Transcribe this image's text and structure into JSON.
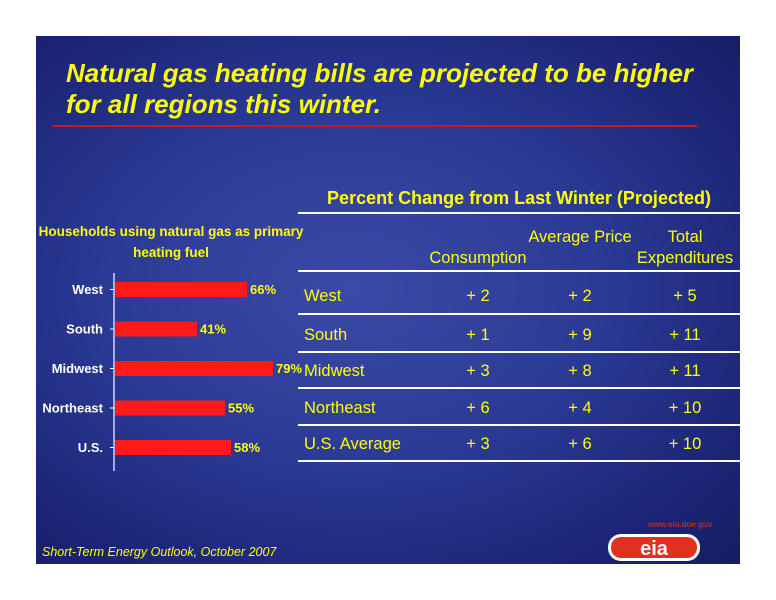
{
  "title": "Natural gas heating bills are projected to be higher for all regions this winter.",
  "source": "Short-Term Energy Outlook, October 2007",
  "logo": {
    "text": "eia",
    "url_text": "www.eia.doe.gov"
  },
  "colors": {
    "background": "#2a3a95",
    "accent_text": "#ffff00",
    "bar": "#ff1a1a",
    "rule": "#cc1a1a"
  },
  "chart_data": {
    "type": "bar",
    "orientation": "horizontal",
    "title": "Households using natural gas as primary heating fuel",
    "categories": [
      "West",
      "South",
      "Midwest",
      "Northeast",
      "U.S."
    ],
    "values": [
      66,
      41,
      79,
      55,
      58
    ],
    "data_labels": [
      "66%",
      "41%",
      "79%",
      "55%",
      "58%"
    ],
    "xlim": [
      0,
      100
    ],
    "grid": false
  },
  "table": {
    "title": "Percent Change from Last Winter (Projected)",
    "headers": [
      "Consumption",
      "Average Price",
      "Total Expenditures"
    ],
    "rows": [
      {
        "region": "West",
        "consumption": "+ 2",
        "price": "+ 2",
        "expenditures": "+ 5"
      },
      {
        "region": "South",
        "consumption": "+ 1",
        "price": "+ 9",
        "expenditures": "+ 11"
      },
      {
        "region": "Midwest",
        "consumption": "+ 3",
        "price": "+ 8",
        "expenditures": "+ 11"
      },
      {
        "region": "Northeast",
        "consumption": "+ 6",
        "price": "+ 4",
        "expenditures": "+ 10"
      },
      {
        "region": "U.S. Average",
        "consumption": "+ 3",
        "price": "+ 6",
        "expenditures": "+ 10"
      }
    ]
  }
}
